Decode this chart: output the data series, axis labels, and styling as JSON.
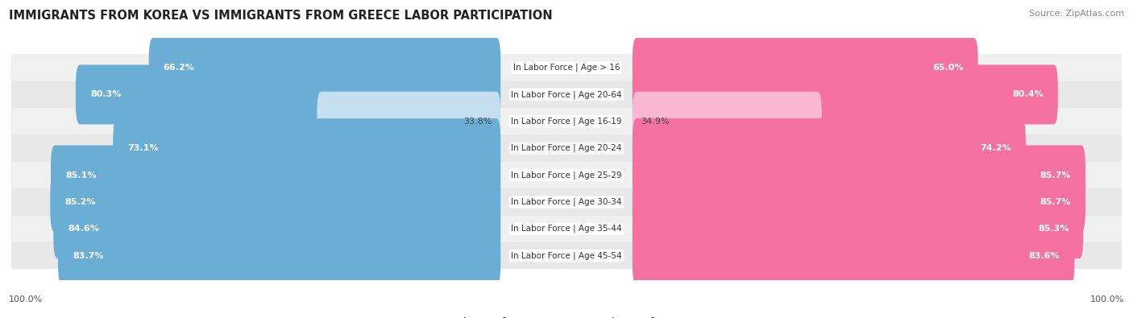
{
  "title": "IMMIGRANTS FROM KOREA VS IMMIGRANTS FROM GREECE LABOR PARTICIPATION",
  "source": "Source: ZipAtlas.com",
  "categories": [
    "In Labor Force | Age > 16",
    "In Labor Force | Age 20-64",
    "In Labor Force | Age 16-19",
    "In Labor Force | Age 20-24",
    "In Labor Force | Age 25-29",
    "In Labor Force | Age 30-34",
    "In Labor Force | Age 35-44",
    "In Labor Force | Age 45-54"
  ],
  "korea_values": [
    66.2,
    80.3,
    33.8,
    73.1,
    85.1,
    85.2,
    84.6,
    83.7
  ],
  "greece_values": [
    65.0,
    80.4,
    34.9,
    74.2,
    85.7,
    85.7,
    85.3,
    83.6
  ],
  "korea_color": "#6aaed6",
  "korea_color_light": "#c5dff0",
  "greece_color": "#f471a0",
  "greece_color_light": "#f9b8d0",
  "row_bg_even": "#f0f0f0",
  "row_bg_odd": "#e8e8e8",
  "max_value": 100.0,
  "label_korea": "Immigrants from Korea",
  "label_greece": "Immigrants from Greece",
  "fig_bg_color": "#ffffff",
  "title_fontsize": 10.5,
  "source_fontsize": 8,
  "bar_label_fontsize": 8,
  "category_fontsize": 7.5,
  "legend_fontsize": 9,
  "bottom_label": "100.0%",
  "center_label_bg": "#ffffff",
  "threshold": 50.0
}
